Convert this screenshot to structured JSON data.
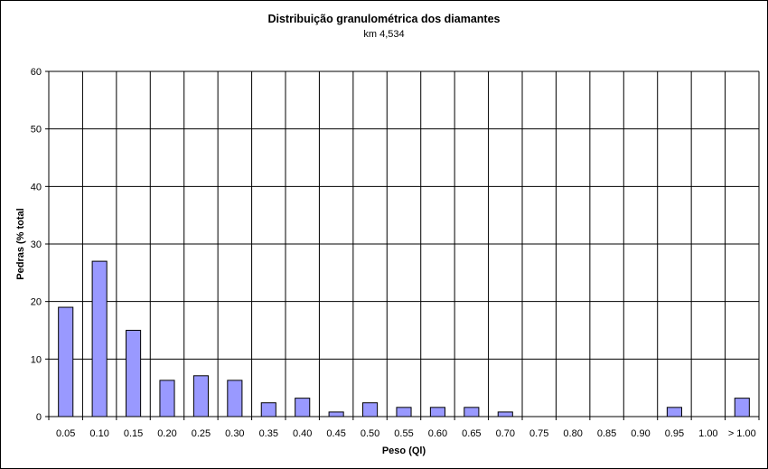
{
  "chart_data": {
    "type": "bar",
    "title": "Distribuição granulométrica dos diamantes",
    "subtitle": "km 4,534",
    "xlabel": "Peso (Ql)",
    "ylabel": "Pedras (% total",
    "ylim": [
      0,
      60
    ],
    "yticks": [
      0,
      10,
      20,
      30,
      40,
      50,
      60
    ],
    "grid": true,
    "legend": "none",
    "bar_color": "#9999ff",
    "categories": [
      "0.05",
      "0.10",
      "0.15",
      "0.20",
      "0.25",
      "0.30",
      "0.35",
      "0.40",
      "0.45",
      "0.50",
      "0.55",
      "0.60",
      "0.65",
      "0.70",
      "0.75",
      "0.80",
      "0.85",
      "0.90",
      "0.95",
      "1.00",
      "> 1.00"
    ],
    "values": [
      19.0,
      27.0,
      15.0,
      6.3,
      7.1,
      6.3,
      2.4,
      3.2,
      0.8,
      2.4,
      1.6,
      1.6,
      1.6,
      0.8,
      0,
      0,
      0,
      0,
      1.6,
      0,
      3.2
    ]
  }
}
